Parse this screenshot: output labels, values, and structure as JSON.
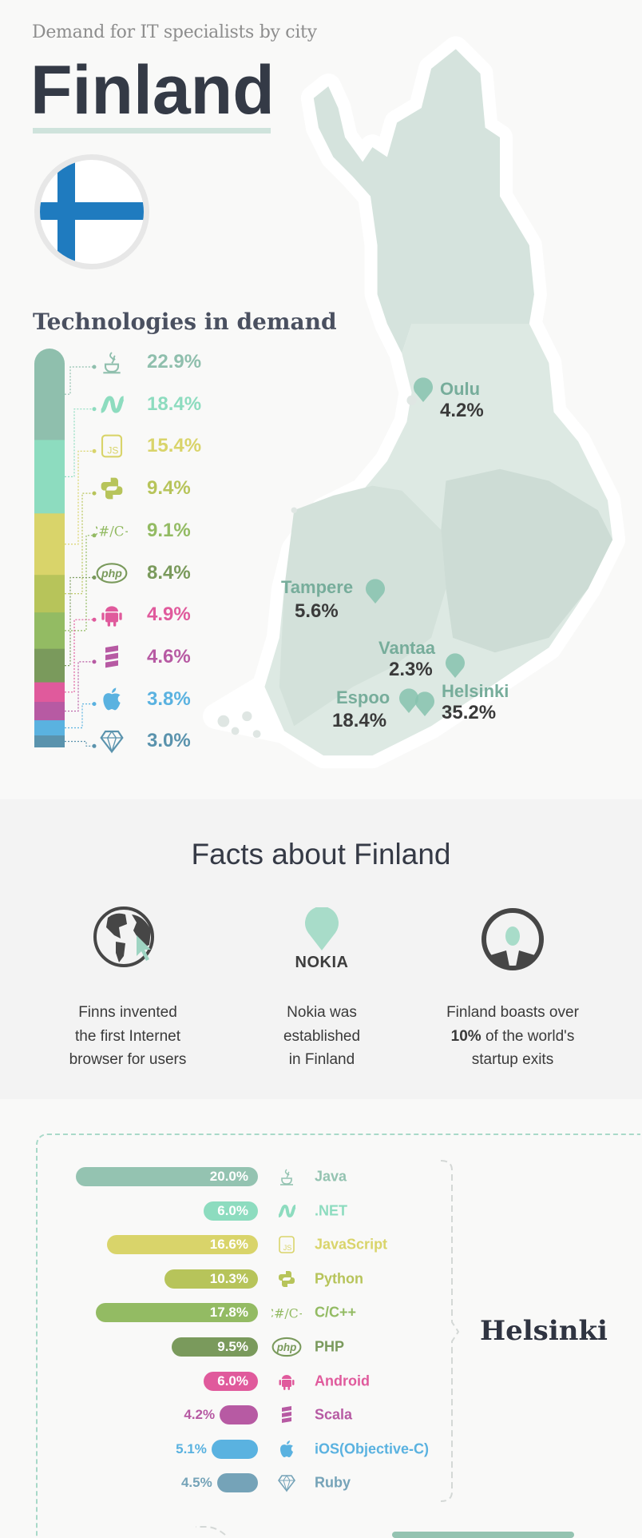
{
  "header": {
    "subtitle": "Demand for IT specialists by city",
    "title": "Finland"
  },
  "colors": {
    "mint": "#9ed4c2",
    "flag_blue": "#1f7bbf",
    "dark": "#343a46"
  },
  "technologies": {
    "title": "Technologies in demand"
  },
  "cities": [
    {
      "name": "Oulu",
      "value": "4.2%"
    },
    {
      "name": "Tampere",
      "value": "5.6%"
    },
    {
      "name": "Vantaa",
      "value": "2.3%"
    },
    {
      "name": "Espoo",
      "value": "18.4%"
    },
    {
      "name": "Helsinki",
      "value": "35.2%"
    }
  ],
  "facts": {
    "title": "Facts about Finland",
    "items": [
      {
        "icon": "globe-cursor-icon",
        "lines": [
          "Finns invented",
          "the first Internet",
          "browser for users"
        ]
      },
      {
        "icon": "map-pin-icon",
        "logo": "NOKIA",
        "lines": [
          "Nokia was",
          "established",
          "in Finland"
        ]
      },
      {
        "icon": "person-icon",
        "line1": "Finland boasts over",
        "bold": "10%",
        "line2_rest": " of the world's",
        "line3": "startup exits"
      }
    ]
  },
  "helsinki": {
    "title": "Helsinki"
  },
  "chart_data": [
    {
      "type": "bar",
      "stacked": true,
      "title": "Technologies in demand",
      "categories": [
        "Java",
        ".NET",
        "JavaScript",
        "Python",
        "C/C++",
        "PHP",
        "Android",
        "Scala",
        "iOS(Objective-C)",
        "Ruby"
      ],
      "icons": [
        "java-icon",
        "dotnet-icon",
        "javascript-icon",
        "python-icon",
        "c-cpp-icon",
        "php-icon",
        "android-icon",
        "scala-icon",
        "apple-icon",
        "ruby-icon"
      ],
      "values": [
        22.9,
        18.4,
        15.4,
        9.4,
        9.1,
        8.4,
        4.9,
        4.6,
        3.8,
        3.0
      ],
      "labels": [
        "22.9%",
        "18.4%",
        "15.4%",
        "9.4%",
        "9.1%",
        "8.4%",
        "4.9%",
        "4.6%",
        "3.8%",
        "3.0%"
      ],
      "colors": [
        "#8fbfad",
        "#8ddcbf",
        "#d9d46a",
        "#b7c45a",
        "#93bb63",
        "#7a9a5c",
        "#e05a9c",
        "#b75aa3",
        "#5ab2e0",
        "#5a93ad"
      ]
    },
    {
      "type": "bar",
      "orientation": "horizontal",
      "title": "Helsinki",
      "categories": [
        "Java",
        ".NET",
        "JavaScript",
        "Python",
        "C/C++",
        "PHP",
        "Android",
        "Scala",
        "iOS(Objective-C)",
        "Ruby"
      ],
      "icons": [
        "java-icon",
        "dotnet-icon",
        "javascript-icon",
        "python-icon",
        "c-cpp-icon",
        "php-icon",
        "android-icon",
        "scala-icon",
        "apple-icon",
        "ruby-icon"
      ],
      "values": [
        20.0,
        6.0,
        16.6,
        10.3,
        17.8,
        9.5,
        6.0,
        4.2,
        5.1,
        4.5
      ],
      "labels": [
        "20.0%",
        "6.0%",
        "16.6%",
        "10.3%",
        "17.8%",
        "9.5%",
        "6.0%",
        "4.2%",
        "5.1%",
        "4.5%"
      ],
      "colors": [
        "#94c3b1",
        "#8ddcbf",
        "#d9d46a",
        "#b7c45a",
        "#93bb63",
        "#7a9a5c",
        "#e05a9c",
        "#b75aa3",
        "#5ab2e0",
        "#75a3b8"
      ]
    }
  ]
}
